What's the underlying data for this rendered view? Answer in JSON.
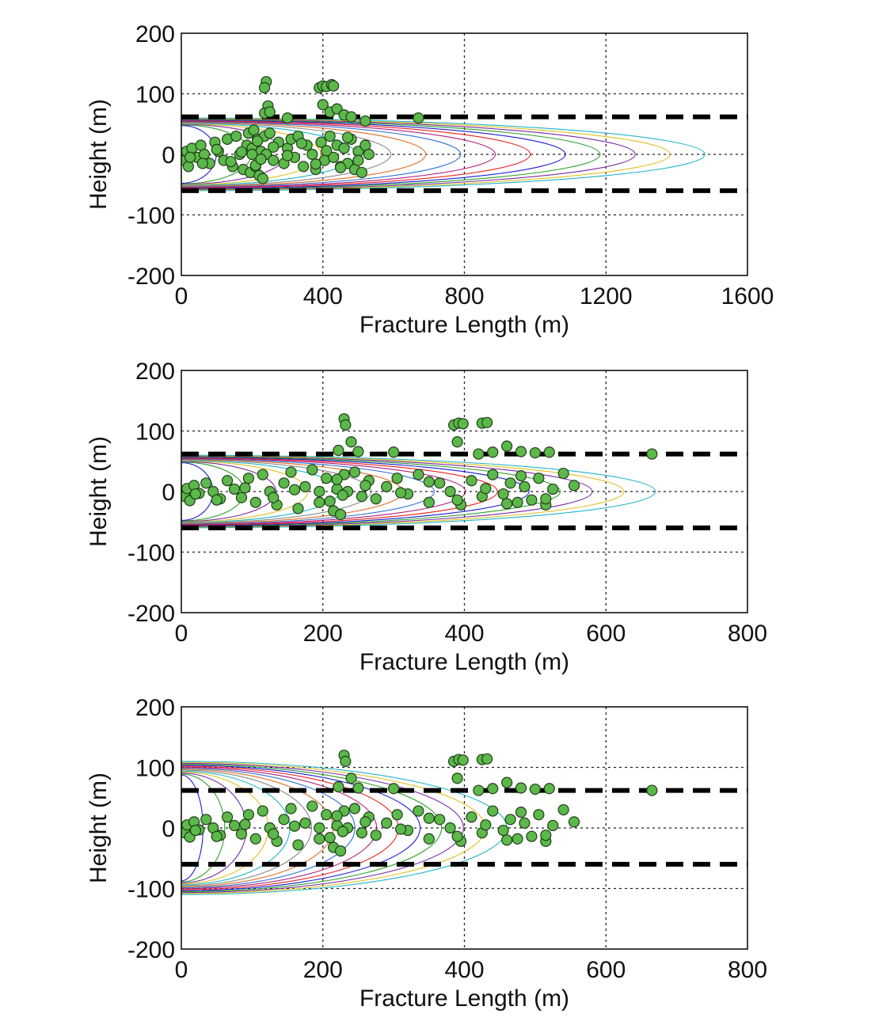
{
  "chart_data": [
    {
      "type": "scatter",
      "title": "",
      "xlabel": "Fracture Length (m)",
      "ylabel": "Height (m)",
      "xlim": [
        0,
        1600
      ],
      "ylim": [
        -200,
        200
      ],
      "xticks": [
        "0",
        "400",
        "800",
        "1200",
        "1600"
      ],
      "yticks": [
        "200",
        "100",
        "0",
        "-100",
        "-200"
      ],
      "grid": true,
      "boundaries_y": [
        62,
        -60
      ],
      "model_contours": {
        "count": 15,
        "max_length": 1480,
        "half_height": 60
      },
      "series": [
        {
          "x": [
            2,
            10,
            15,
            20,
            30,
            45,
            55,
            65,
            80,
            95,
            105,
            120,
            130,
            145,
            155,
            165,
            175,
            185,
            190,
            195,
            200,
            205,
            210,
            215,
            220,
            225,
            230,
            235,
            240,
            250,
            260,
            275,
            290,
            300,
            310,
            320,
            330,
            345,
            355,
            370,
            380,
            395,
            405,
            420,
            430,
            440,
            450,
            460,
            470,
            480,
            490,
            500,
            510,
            520,
            530,
            240,
            235,
            245,
            390,
            400,
            410,
            425,
            430,
            400,
            235,
            250,
            300,
            420,
            440,
            460,
            480,
            520,
            670,
            25,
            60,
            100,
            140,
            170,
            200,
            210,
            215,
            225,
            260,
            300,
            340,
            380,
            410,
            450,
            470,
            500
          ],
          "y": [
            2,
            -10,
            5,
            -20,
            10,
            -5,
            15,
            0,
            -15,
            20,
            5,
            -10,
            25,
            -20,
            30,
            0,
            -25,
            15,
            35,
            -30,
            10,
            40,
            -20,
            25,
            -35,
            5,
            -40,
            30,
            0,
            35,
            -10,
            20,
            -15,
            10,
            25,
            -5,
            30,
            -20,
            15,
            0,
            -25,
            20,
            -10,
            30,
            -5,
            15,
            -20,
            10,
            -15,
            25,
            -25,
            5,
            -30,
            15,
            0,
            120,
            110,
            80,
            110,
            113,
            112,
            115,
            113,
            82,
            68,
            70,
            60,
            70,
            75,
            65,
            62,
            55,
            60,
            -5,
            -15,
            8,
            -12,
            4,
            0,
            -18,
            22,
            -8,
            12,
            -2,
            18,
            -16,
            6,
            -22,
            28,
            -10
          ]
        }
      ]
    },
    {
      "type": "scatter",
      "title": "",
      "xlabel": "Fracture Length (m)",
      "ylabel": "Height (m)",
      "xlim": [
        0,
        800
      ],
      "ylim": [
        -200,
        200
      ],
      "xticks": [
        "0",
        "200",
        "400",
        "600",
        "800"
      ],
      "yticks": [
        "200",
        "100",
        "0",
        "-100",
        "-200"
      ],
      "grid": true,
      "boundaries_y": [
        62,
        -60
      ],
      "model_contours": {
        "count": 15,
        "max_length": 670,
        "half_height": 60
      },
      "series": [
        {
          "x": [
            1,
            5,
            8,
            12,
            18,
            25,
            35,
            45,
            55,
            65,
            75,
            85,
            95,
            105,
            115,
            125,
            135,
            145,
            155,
            165,
            175,
            185,
            195,
            205,
            215,
            220,
            225,
            230,
            235,
            245,
            255,
            265,
            275,
            290,
            305,
            320,
            335,
            350,
            365,
            380,
            395,
            410,
            425,
            440,
            455,
            465,
            475,
            485,
            495,
            505,
            515,
            525,
            540,
            555,
            230,
            232,
            240,
            385,
            392,
            398,
            425,
            432,
            390,
            222,
            250,
            300,
            420,
            440,
            460,
            480,
            500,
            520,
            665,
            20,
            50,
            90,
            130,
            160,
            195,
            210,
            220,
            228,
            260,
            310,
            350,
            390,
            430,
            460,
            480,
            515
          ],
          "y": [
            0,
            -8,
            5,
            -15,
            10,
            -3,
            14,
            0,
            -12,
            18,
            4,
            -10,
            22,
            -18,
            28,
            0,
            -22,
            14,
            32,
            -28,
            8,
            36,
            -18,
            22,
            -32,
            4,
            -38,
            28,
            0,
            32,
            -8,
            18,
            -12,
            8,
            22,
            -4,
            28,
            -18,
            14,
            0,
            -22,
            18,
            -8,
            28,
            -4,
            14,
            -18,
            8,
            -14,
            22,
            -22,
            4,
            30,
            10,
            120,
            110,
            82,
            110,
            113,
            112,
            113,
            114,
            82,
            68,
            66,
            65,
            62,
            65,
            75,
            66,
            64,
            65,
            62,
            -4,
            -14,
            6,
            -10,
            3,
            0,
            -16,
            20,
            -6,
            10,
            -2,
            16,
            -14,
            5,
            -20,
            26,
            -12
          ]
        }
      ]
    },
    {
      "type": "scatter",
      "title": "",
      "xlabel": "Fracture Length (m)",
      "ylabel": "Height (m)",
      "xlim": [
        0,
        800
      ],
      "ylim": [
        -200,
        200
      ],
      "xticks": [
        "0",
        "200",
        "400",
        "600",
        "800"
      ],
      "yticks": [
        "200",
        "100",
        "0",
        "-100",
        "-200"
      ],
      "grid": true,
      "boundaries_y": [
        62,
        -60
      ],
      "model_contours": {
        "count": 15,
        "max_length": 460,
        "half_height": 110
      },
      "series": [
        {
          "x": [
            1,
            5,
            8,
            12,
            18,
            25,
            35,
            45,
            55,
            65,
            75,
            85,
            95,
            105,
            115,
            125,
            135,
            145,
            155,
            165,
            175,
            185,
            195,
            205,
            215,
            220,
            225,
            230,
            235,
            245,
            255,
            265,
            275,
            290,
            305,
            320,
            335,
            350,
            365,
            380,
            395,
            410,
            425,
            440,
            455,
            465,
            475,
            485,
            495,
            505,
            515,
            525,
            540,
            555,
            230,
            232,
            240,
            385,
            392,
            398,
            425,
            432,
            390,
            222,
            250,
            300,
            420,
            440,
            460,
            480,
            500,
            520,
            665,
            20,
            50,
            90,
            130,
            160,
            195,
            210,
            220,
            228,
            260,
            310,
            350,
            390,
            430,
            460,
            480,
            515
          ],
          "y": [
            0,
            -8,
            5,
            -15,
            10,
            -3,
            14,
            0,
            -12,
            18,
            4,
            -10,
            22,
            -18,
            28,
            0,
            -22,
            14,
            32,
            -28,
            8,
            36,
            -18,
            22,
            -32,
            4,
            -38,
            28,
            0,
            32,
            -8,
            18,
            -12,
            8,
            22,
            -4,
            28,
            -18,
            14,
            0,
            -22,
            18,
            -8,
            28,
            -4,
            14,
            -18,
            8,
            -14,
            22,
            -22,
            4,
            30,
            10,
            120,
            110,
            82,
            110,
            113,
            112,
            113,
            114,
            82,
            68,
            66,
            65,
            62,
            65,
            75,
            66,
            64,
            65,
            62,
            -4,
            -14,
            6,
            -10,
            3,
            0,
            -16,
            20,
            -6,
            10,
            -2,
            16,
            -14,
            5,
            -20,
            26,
            -12
          ]
        }
      ]
    }
  ],
  "colors": {
    "event_fill": "#5cb84a",
    "event_stroke": "#1f3d18",
    "boundary": "#000000",
    "contour_palette": [
      "#e8211c",
      "#1b1bd6",
      "#2aa02a",
      "#7a2aa0",
      "#e0c020",
      "#20b4c8",
      "#888888",
      "#e06c20",
      "#2c6fd6",
      "#b01c7a"
    ]
  }
}
